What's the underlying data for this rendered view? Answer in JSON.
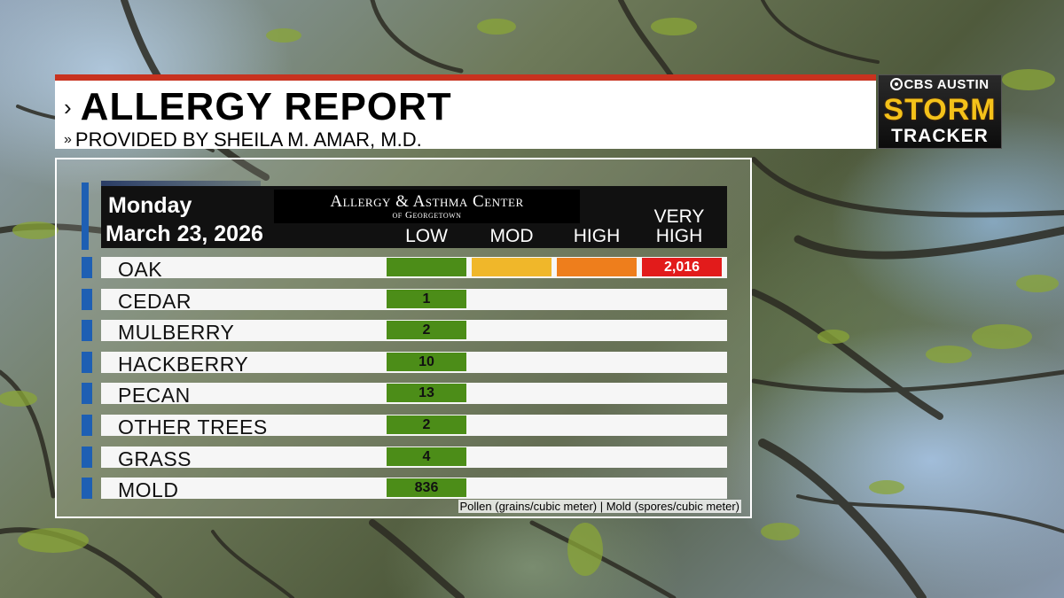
{
  "header": {
    "title": "ALLERGY REPORT",
    "subtitle": "PROVIDED BY SHEILA M. AMAR, M.D."
  },
  "logo": {
    "network": "CBS AUSTIN",
    "brand_line1": "STORM",
    "brand_line2": "TRACKER"
  },
  "report": {
    "day": "Monday",
    "date": "March 23, 2026",
    "sponsor_line1": "Allergy & Asthma Center",
    "sponsor_line2": "of Georgetown",
    "levels": [
      "LOW",
      "MOD",
      "HIGH",
      "VERY HIGH"
    ],
    "level_colors": {
      "LOW": "#4c8d18",
      "MOD": "#f0b72a",
      "HIGH": "#ee7e1c",
      "VERY HIGH": "#e21b1b"
    },
    "rows": [
      {
        "name": "OAK",
        "value": "2,016",
        "level": "VERY HIGH"
      },
      {
        "name": "CEDAR",
        "value": "1",
        "level": "LOW"
      },
      {
        "name": "MULBERRY",
        "value": "2",
        "level": "LOW"
      },
      {
        "name": "HACKBERRY",
        "value": "10",
        "level": "LOW"
      },
      {
        "name": "PECAN",
        "value": "13",
        "level": "LOW"
      },
      {
        "name": "OTHER TREES",
        "value": "2",
        "level": "LOW"
      },
      {
        "name": "GRASS",
        "value": "4",
        "level": "LOW"
      },
      {
        "name": "MOLD",
        "value": "836",
        "level": "LOW"
      }
    ],
    "footnote": "Pollen (grains/cubic meter) | Mold (spores/cubic meter)"
  },
  "icons": {
    "title_marker": "chevron-right-icon",
    "subtitle_marker": "double-chevron-right-icon",
    "network_logo": "cbs-eye-icon"
  }
}
